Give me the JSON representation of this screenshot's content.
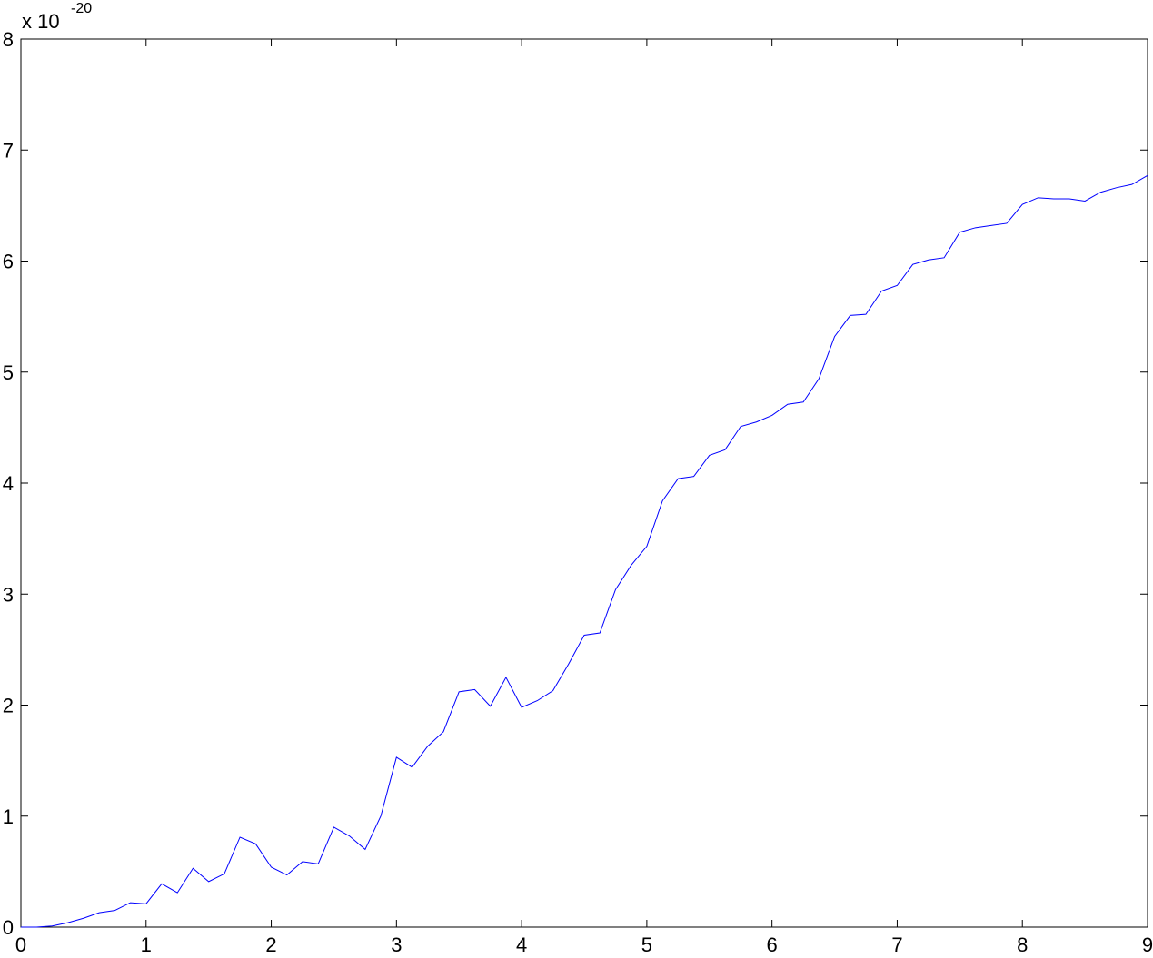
{
  "chart_data": {
    "type": "line",
    "title": "",
    "xlabel": "",
    "ylabel": "",
    "y_multiplier_prefix": "x 10",
    "y_multiplier_exponent": "-20",
    "xlim": [
      0,
      9
    ],
    "ylim": [
      0,
      8
    ],
    "x_ticks": [
      "0",
      "1",
      "2",
      "3",
      "4",
      "5",
      "6",
      "7",
      "8",
      "9"
    ],
    "y_ticks": [
      "0",
      "1",
      "2",
      "3",
      "4",
      "5",
      "6",
      "7",
      "8"
    ],
    "grid": false,
    "line_color": "#0000ff",
    "series": [
      {
        "x": [
          0,
          0.125,
          0.25,
          0.375,
          0.5,
          0.625,
          0.75,
          0.875,
          1.0,
          1.125,
          1.25,
          1.375,
          1.5,
          1.625,
          1.75,
          1.875,
          2.0,
          2.125,
          2.25,
          2.375,
          2.5,
          2.625,
          2.75,
          2.875,
          3.0,
          3.125,
          3.25,
          3.375,
          3.5,
          3.625,
          3.75,
          3.875,
          4.0,
          4.125,
          4.25,
          4.375,
          4.5,
          4.625,
          4.75,
          4.875,
          5.0,
          5.125,
          5.25,
          5.375,
          5.5,
          5.625,
          5.75,
          5.875,
          6.0,
          6.125,
          6.25,
          6.375,
          6.5,
          6.625,
          6.75,
          6.875,
          7.0,
          7.125,
          7.25,
          7.375,
          7.5,
          7.625,
          7.75,
          7.875,
          8.0,
          8.125,
          8.25,
          8.375,
          8.5,
          8.625,
          8.75,
          8.875,
          9.0
        ],
        "y": [
          0.0,
          0.0,
          0.01,
          0.04,
          0.08,
          0.13,
          0.15,
          0.22,
          0.21,
          0.39,
          0.31,
          0.53,
          0.41,
          0.48,
          0.81,
          0.75,
          0.54,
          0.47,
          0.59,
          0.57,
          0.9,
          0.82,
          0.7,
          1.0,
          1.53,
          1.44,
          1.63,
          1.76,
          2.12,
          2.14,
          1.99,
          2.25,
          1.98,
          2.04,
          2.13,
          2.37,
          2.63,
          2.65,
          3.04,
          3.26,
          3.43,
          3.84,
          4.04,
          4.06,
          4.25,
          4.3,
          4.51,
          4.55,
          4.61,
          4.71,
          4.73,
          4.94,
          5.32,
          5.51,
          5.52,
          5.73,
          5.78,
          5.97,
          6.01,
          6.03,
          6.26,
          6.3,
          6.32,
          6.34,
          6.51,
          6.57,
          6.56,
          6.56,
          6.54,
          6.62,
          6.66,
          6.69,
          6.77
        ]
      }
    ]
  }
}
